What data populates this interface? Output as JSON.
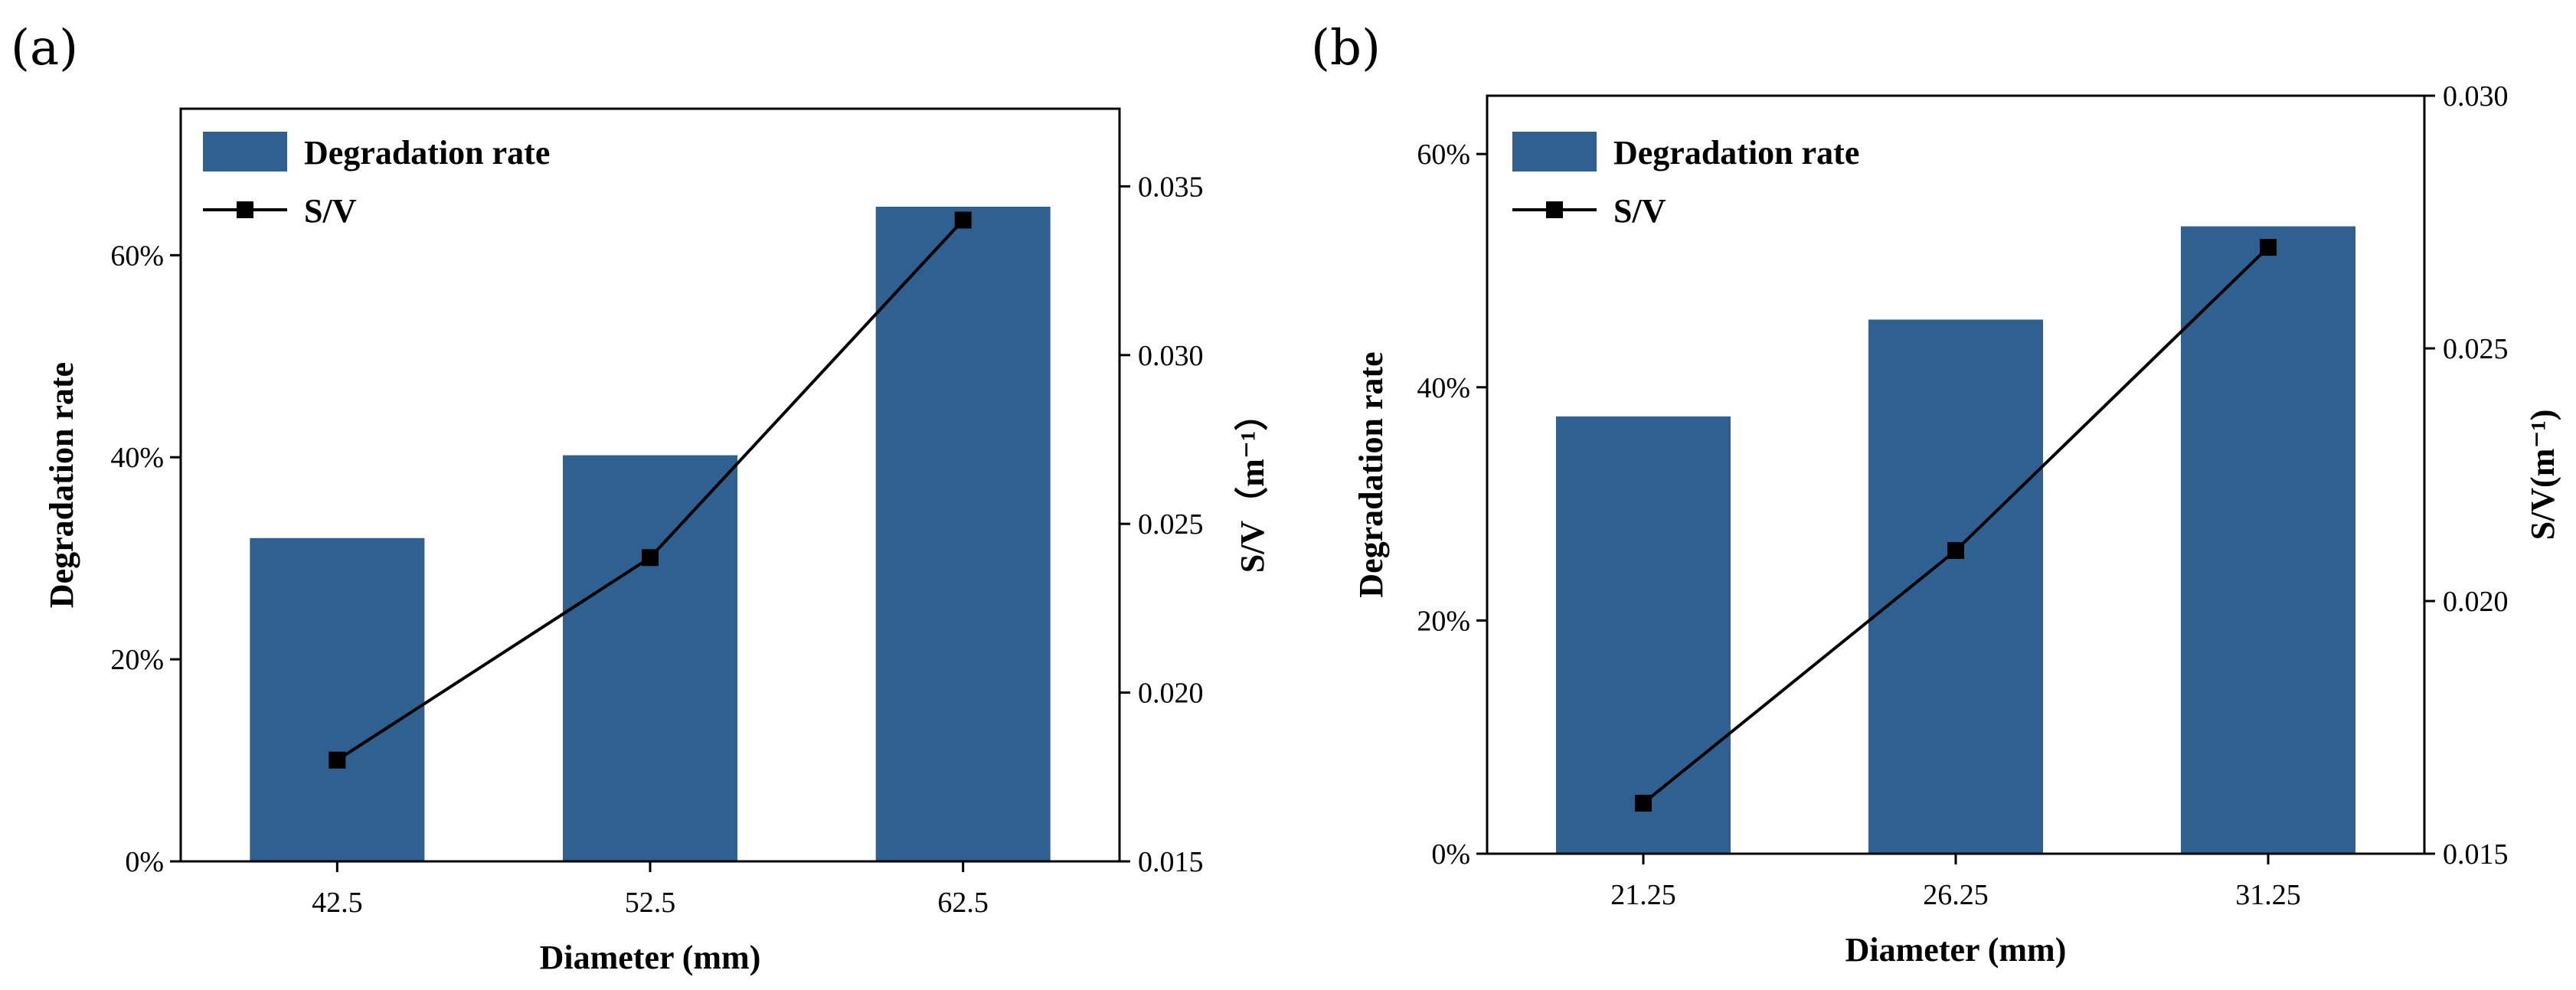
{
  "chart_data": [
    {
      "panel": "(a)",
      "type": "bar",
      "categories": [
        "42.5",
        "52.5",
        "62.5"
      ],
      "series": [
        {
          "name": "Degradation rate",
          "type": "bar",
          "axis": "left",
          "values": [
            32,
            40.2,
            64.8
          ]
        },
        {
          "name": "S/V",
          "type": "line",
          "axis": "right",
          "values": [
            0.018,
            0.024,
            0.034
          ]
        }
      ],
      "xlabel": "Diameter (mm)",
      "ylabel": "Degradation rate",
      "y2label": "S/V（m⁻¹）",
      "ylim": [
        0,
        74.5
      ],
      "yticks": [
        0,
        20,
        40,
        60
      ],
      "ytick_labels": [
        "0%",
        "20%",
        "40%",
        "60%"
      ],
      "y2lim": [
        0.015,
        0.0373
      ],
      "y2ticks": [
        0.015,
        0.02,
        0.025,
        0.03,
        0.035
      ],
      "y2tick_labels": [
        "0.015",
        "0.020",
        "0.025",
        "0.030",
        "0.035"
      ],
      "legend": "top-left",
      "grid": false
    },
    {
      "panel": "(b)",
      "type": "bar",
      "categories": [
        "21.25",
        "26.25",
        "31.25"
      ],
      "series": [
        {
          "name": "Degradation rate",
          "type": "bar",
          "axis": "left",
          "values": [
            37.5,
            45.8,
            53.8
          ]
        },
        {
          "name": "S/V",
          "type": "line",
          "axis": "right",
          "values": [
            0.016,
            0.021,
            0.027
          ]
        }
      ],
      "xlabel": "Diameter (mm)",
      "ylabel": "Degradation rate",
      "y2label": "S/V(m⁻¹)",
      "ylim": [
        0,
        65
      ],
      "yticks": [
        0,
        20,
        40,
        60
      ],
      "ytick_labels": [
        "0%",
        "20%",
        "40%",
        "60%"
      ],
      "y2lim": [
        0.015,
        0.03
      ],
      "y2ticks": [
        0.015,
        0.02,
        0.025,
        0.03
      ],
      "y2tick_labels": [
        "0.015",
        "0.020",
        "0.025",
        "0.030"
      ],
      "legend": "top-left",
      "grid": false
    }
  ],
  "colors": {
    "bar": "#306090",
    "line": "#000000",
    "axis": "#000000"
  }
}
